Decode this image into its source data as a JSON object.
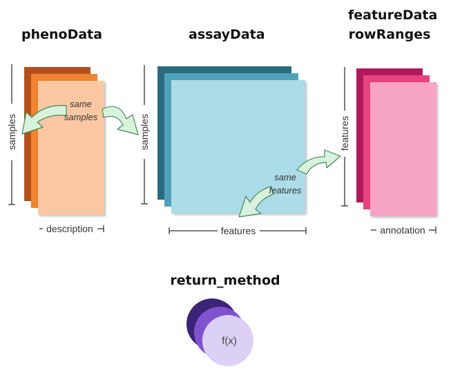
{
  "headings": {
    "pheno": "phenoData",
    "assay": "assayData",
    "feature_line1": "featureData",
    "feature_line2": "rowRanges",
    "return": "return_method"
  },
  "axis_labels": {
    "pheno_vertical": "samples",
    "pheno_horizontal": "description",
    "assay_vertical": "samples",
    "assay_horizontal": "features",
    "feature_vertical": "features",
    "feature_horizontal": "annotation"
  },
  "notes": {
    "same_samples_line1": "same",
    "same_samples_line2": "samples",
    "same_features_line1": "same",
    "same_features_line2": "features"
  },
  "function_label": "f(x)",
  "colors": {
    "pheno_dark": "#b5501a",
    "pheno_mid": "#f0832f",
    "pheno_front": "#fbc8a3",
    "assay_dark": "#2c6a80",
    "assay_mid": "#4fa3b8",
    "assay_front": "#acdce8",
    "feature_dark": "#b0185c",
    "feature_mid": "#e7437e",
    "feature_front": "#f7a3c6",
    "arrow_fill": "#d9f2dd",
    "arrow_stroke": "#3e8a57",
    "circle_dark": "#3b2478",
    "circle_mid": "#7f53cf",
    "circle_front": "#ddd0f5"
  }
}
